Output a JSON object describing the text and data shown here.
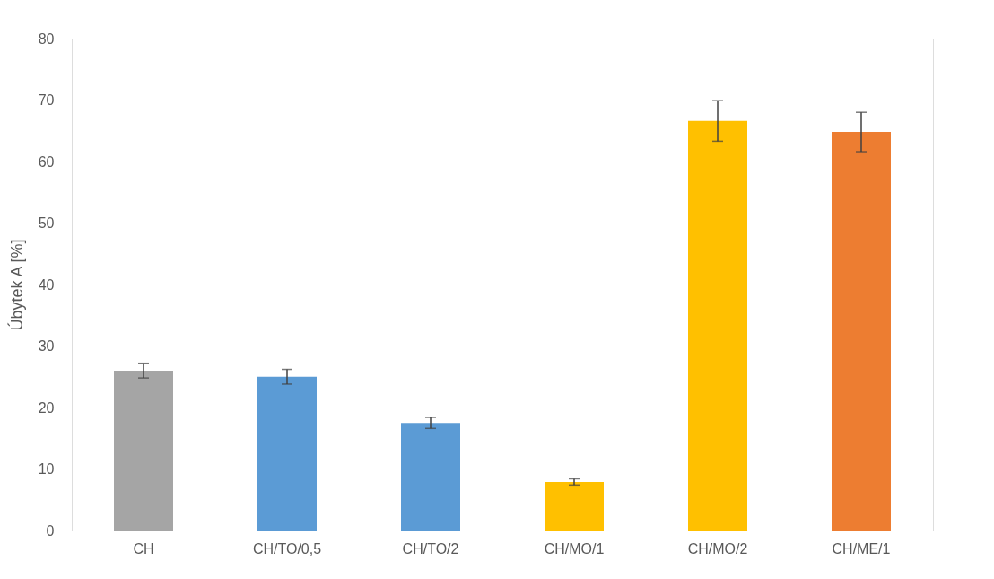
{
  "chart_data": {
    "type": "bar",
    "ylabel": "Úbytek A [%]",
    "categories": [
      "CH",
      "CH/TO/0,5",
      "CH/TO/2",
      "CH/MO/1",
      "CH/MO/2",
      "CH/ME/1"
    ],
    "values": [
      26.0,
      25.0,
      17.5,
      7.9,
      66.6,
      64.8
    ],
    "errors": [
      1.2,
      1.2,
      0.9,
      0.5,
      3.3,
      3.2
    ],
    "colors": [
      "#a5a5a5",
      "#5b9bd5",
      "#5b9bd5",
      "#ffc000",
      "#ffc000",
      "#ed7d31"
    ],
    "ylim": [
      0,
      80
    ],
    "yticks": [
      0,
      10,
      20,
      30,
      40,
      50,
      60,
      70,
      80
    ],
    "grid": false
  }
}
